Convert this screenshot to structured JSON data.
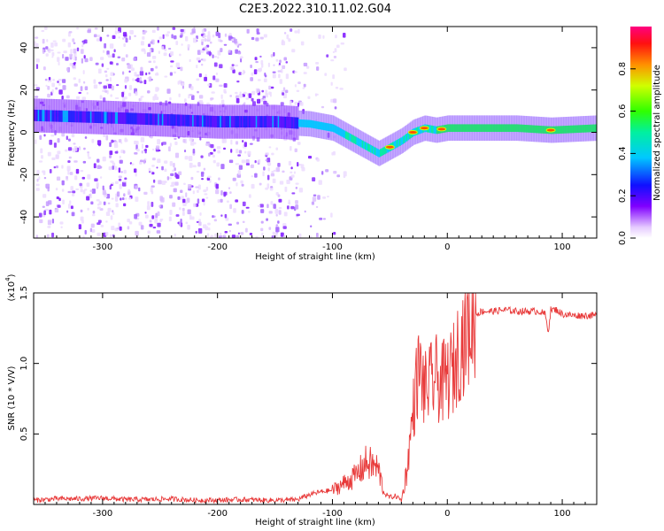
{
  "title": "C2E3.2022.310.11.02.G04",
  "colors": {
    "snr_line": "#e83a3a",
    "colormap": [
      "#ffffff",
      "#d9b3ff",
      "#8000ff",
      "#0000ff",
      "#00d0ff",
      "#00ff40",
      "#c8ff00",
      "#ff8000",
      "#ff0000",
      "#ff0080"
    ]
  },
  "chart_data": [
    {
      "type": "heatmap",
      "name": "spectrogram",
      "xlabel": "Height of straight line (km)",
      "ylabel": "Frequency (Hz)",
      "xlim": [
        -360,
        130
      ],
      "ylim": [
        -50,
        50
      ],
      "x_ticks": [
        -300,
        -200,
        -100,
        0,
        100
      ],
      "y_ticks": [
        -40,
        -20,
        0,
        20,
        40
      ],
      "x_tick_labels": [
        "-300",
        "-200",
        "-100",
        "0",
        "100"
      ],
      "y_tick_labels": [
        "-40",
        "-20",
        "0",
        "20",
        "40"
      ],
      "colorbar": {
        "label": "Normalized spectral amplitude",
        "range": [
          0,
          1
        ],
        "ticks": [
          0.0,
          0.2,
          0.4,
          0.6,
          0.8
        ],
        "tick_labels": [
          "0.0",
          "0.2",
          "0.4",
          "0.6",
          "0.8"
        ]
      },
      "ridge": {
        "description_points_x": [
          -360,
          -300,
          -250,
          -200,
          -150,
          -120,
          -100,
          -80,
          -60,
          -50,
          -40,
          -30,
          -20,
          -10,
          0,
          20,
          60,
          90,
          130
        ],
        "description_points_freq": [
          8,
          7,
          6,
          5,
          5,
          4,
          2,
          -4,
          -10,
          -7,
          -4,
          0,
          2,
          1,
          2,
          2,
          2,
          1,
          2
        ],
        "peak_amplitude_x": [
          -50,
          -30,
          -20,
          -5,
          90
        ]
      },
      "noise_region_x": [
        -360,
        -130
      ]
    },
    {
      "type": "line",
      "name": "snr",
      "xlabel": "Height of straight line (km)",
      "ylabel": "SNR (10 * V/V)",
      "y_multiplier_label": "(x10",
      "y_multiplier_exp": "4",
      "xlim": [
        -360,
        130
      ],
      "ylim": [
        0,
        15000
      ],
      "x_ticks": [
        -300,
        -200,
        -100,
        0,
        100
      ],
      "y_ticks": [
        5000,
        10000,
        15000
      ],
      "x_tick_labels": [
        "-300",
        "-200",
        "-100",
        "0",
        "100"
      ],
      "y_tick_labels": [
        "0.5",
        "1.0",
        "1.5"
      ],
      "series": [
        {
          "x": [
            -360,
            -340,
            -320,
            -300,
            -280,
            -260,
            -240,
            -220,
            -200,
            -180,
            -160,
            -140,
            -130,
            -120,
            -110,
            -100,
            -90,
            -80,
            -70,
            -60,
            -55,
            -50,
            -45,
            -40,
            -35,
            -30,
            -27,
            -25,
            -22,
            -20,
            -15,
            -10,
            -5,
            0,
            5,
            10,
            15,
            20,
            25,
            30,
            40,
            50,
            60,
            70,
            80,
            85,
            88,
            90,
            95,
            100,
            110,
            120,
            130
          ],
          "y": [
            300,
            400,
            400,
            450,
            350,
            350,
            400,
            300,
            300,
            350,
            300,
            300,
            350,
            700,
            900,
            1000,
            1500,
            2000,
            3000,
            2500,
            800,
            500,
            600,
            300,
            2500,
            6500,
            8500,
            9500,
            9000,
            8000,
            8500,
            9000,
            8500,
            9000,
            9500,
            11000,
            12000,
            12800,
            13500,
            13700,
            13700,
            13800,
            13700,
            13700,
            13700,
            13500,
            12300,
            13800,
            13800,
            13500,
            13400,
            13400,
            13400
          ]
        }
      ]
    }
  ]
}
